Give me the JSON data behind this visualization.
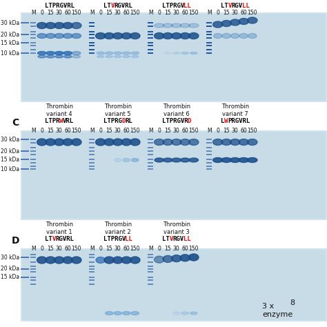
{
  "fig_bg": "#e8f0f5",
  "gel_bg": "#d0e4ef",
  "gel_bg2": "#c8dce8",
  "band_dark": "#1a4e8a",
  "band_mid": "#2a6ab0",
  "band_light": "#5090cc",
  "ladder_color": "#2255a0",
  "red_color": "#cc1111",
  "black": "#111111",
  "white": "#ffffff",
  "top_seqs": [
    [
      [
        "LTPRGVRL",
        "black"
      ]
    ],
    [
      [
        "LT",
        "black"
      ],
      [
        "V",
        "red"
      ],
      [
        "RGVRL",
        "black"
      ]
    ],
    [
      [
        "LTPRGV",
        "black"
      ],
      [
        "LL",
        "red"
      ]
    ],
    [
      [
        "LT",
        "black"
      ],
      [
        "V",
        "red"
      ],
      [
        "RGV",
        "black"
      ],
      [
        "LL",
        "red"
      ]
    ]
  ],
  "c_seqs": [
    [
      [
        "LTPR",
        "black"
      ],
      [
        "W",
        "red"
      ],
      [
        "VRL",
        "black"
      ]
    ],
    [
      [
        "LTPRG",
        "black"
      ],
      [
        "D",
        "red"
      ],
      [
        "RL",
        "black"
      ]
    ],
    [
      [
        "LTPRGVR",
        "black"
      ],
      [
        "D",
        "red"
      ]
    ],
    [
      [
        "L",
        "black"
      ],
      [
        "W",
        "red"
      ],
      [
        "PRGVRL",
        "black"
      ]
    ]
  ],
  "d_seqs": [
    [
      [
        "LT",
        "black"
      ],
      [
        "V",
        "red"
      ],
      [
        "RGVRL",
        "black"
      ]
    ],
    [
      [
        "LTPRGV",
        "black"
      ],
      [
        "LL",
        "red"
      ]
    ],
    [
      [
        "LT",
        "black"
      ],
      [
        "V",
        "red"
      ],
      [
        "RGV",
        "black"
      ],
      [
        "LL",
        "red"
      ]
    ]
  ],
  "top_variants": [
    "Thrombin\nvariant 4",
    "Thrombin\nvariant 5",
    "Thrombin\nvariant 6",
    "Thrombin\nvariant 7"
  ],
  "d_variants": [
    "Thrombin\nvariant 1",
    "Thrombin\nvariant 2",
    "Thrombin\nvariant 3"
  ],
  "time_pts": [
    "0",
    "15",
    "30",
    "60",
    "150"
  ],
  "kda4": [
    "30 kDa",
    "20 kDa",
    "15 kDa",
    "10 kDa"
  ],
  "kda3": [
    "30 kDa",
    "20 kDa",
    "15 kDa"
  ],
  "fs_seq": 6.5,
  "fs_kda": 5.5,
  "fs_time": 5.5,
  "fs_variant": 6.0,
  "fs_panel": 10,
  "fs_3x": 8
}
